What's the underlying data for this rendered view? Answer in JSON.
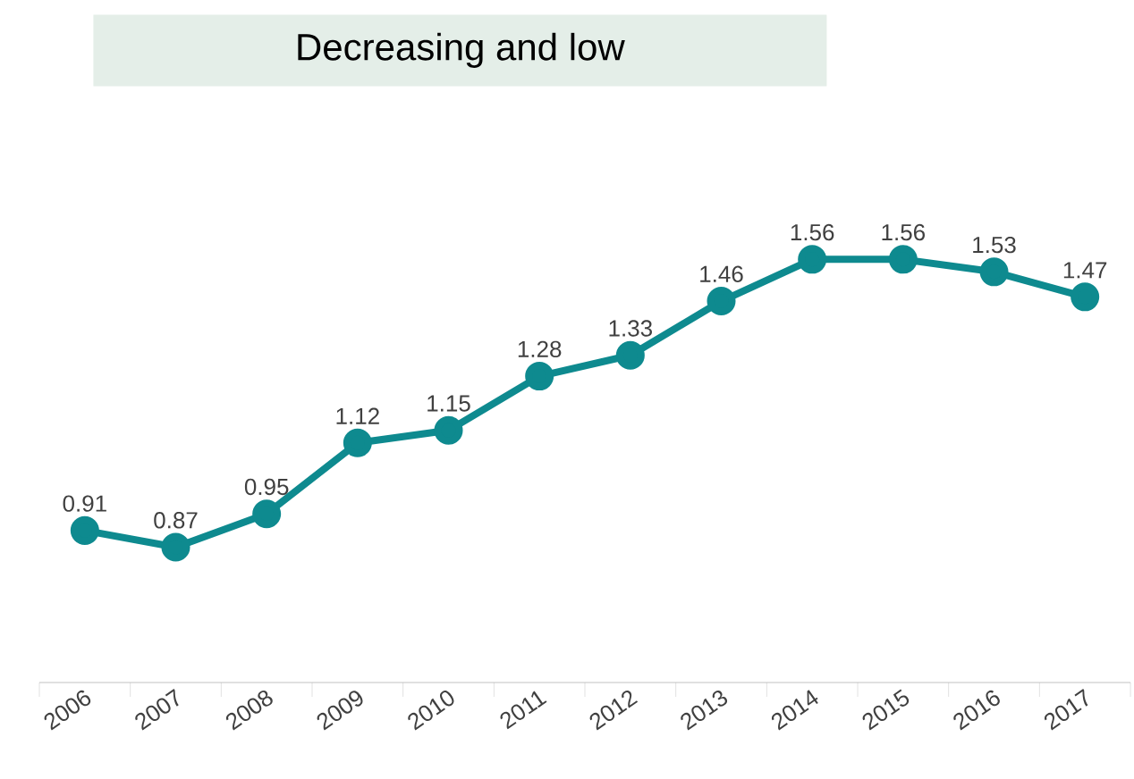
{
  "chart_data": {
    "type": "line",
    "title": "Decreasing and low",
    "categories": [
      "2006",
      "2007",
      "2008",
      "2009",
      "2010",
      "2011",
      "2012",
      "2013",
      "2014",
      "2015",
      "2016",
      "2017"
    ],
    "values": [
      0.91,
      0.87,
      0.95,
      1.12,
      1.15,
      1.28,
      1.33,
      1.46,
      1.56,
      1.56,
      1.53,
      1.47
    ],
    "color": "#0e8a8f",
    "marker": "circle",
    "line_style": "solid",
    "data_labels": true
  }
}
